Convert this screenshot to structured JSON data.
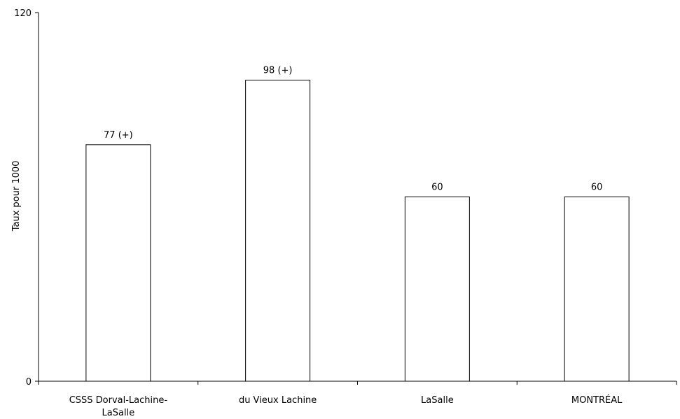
{
  "chart_data": {
    "type": "bar",
    "categories": [
      [
        "CSSS Dorval-Lachine-",
        "LaSalle"
      ],
      [
        "du Vieux Lachine"
      ],
      [
        "LaSalle"
      ],
      [
        "MONTRÉAL"
      ]
    ],
    "values": [
      77,
      98,
      60,
      60
    ],
    "data_labels": [
      "77 (+)",
      "98 (+)",
      "60",
      "60"
    ],
    "title": "",
    "xlabel": "",
    "ylabel": "Taux pour 1000",
    "ylim": [
      0,
      120
    ],
    "y_ticks": [
      0,
      120
    ],
    "grid": false,
    "legend": "none",
    "colors": {
      "bar_fill": "#ffffff",
      "bar_stroke": "#000000",
      "axis": "#000000"
    }
  }
}
